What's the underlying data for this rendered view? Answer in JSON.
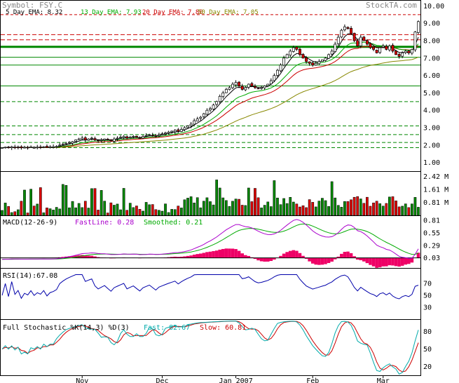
{
  "header": {
    "symbol": "Symbol: FSY.C",
    "watermark": "StockTA.com",
    "ema5": "5 Day EMA: 8.32",
    "ema13": "13 Day EMA: 7.93",
    "ema20": "20 Day EMA: 7.80",
    "ema50": "50 Day EMA: 7.05"
  },
  "colors": {
    "up_candle": "#ffffff",
    "down_candle": "#dd0000",
    "ema5": "#000000",
    "ema13": "#00aa00",
    "ema20": "#cc0000",
    "ema50": "#888800",
    "volume_up": "#008800",
    "volume_down": "#dd0000",
    "macd_fast": "#aa00cc",
    "macd_smoothed": "#00aa00",
    "macd_hist": "#ee0066",
    "rsi": "#0000aa",
    "stoch_fast": "#00aaaa",
    "stoch_slow": "#cc0000",
    "resistance": "#cc0000",
    "support": "#008800"
  },
  "chart_data": [
    {
      "type": "candlestick",
      "panel": "price",
      "ylim": [
        0.5,
        10.3
      ],
      "yticks": [
        "10.00",
        "9.00",
        "8.00",
        "7.00",
        "6.00",
        "5.00",
        "4.00",
        "3.00",
        "2.00",
        "1.00"
      ],
      "xtick_labels": [
        "Nov",
        "Dec",
        "Jan 2007",
        "Feb",
        "Mar"
      ],
      "series": [
        {
          "name": "5 Day EMA",
          "value": 8.32
        },
        {
          "name": "13 Day EMA",
          "value": 7.93
        },
        {
          "name": "20 Day EMA",
          "value": 7.8
        },
        {
          "name": "50 Day EMA",
          "value": 7.05
        }
      ],
      "closes": [
        1.85,
        1.88,
        1.85,
        1.9,
        1.86,
        1.88,
        1.84,
        1.87,
        1.86,
        1.89,
        1.86,
        1.88,
        1.87,
        1.9,
        1.86,
        1.89,
        1.9,
        1.92,
        2.0,
        2.05,
        2.1,
        2.15,
        2.2,
        2.3,
        2.35,
        2.4,
        2.3,
        2.35,
        2.4,
        2.3,
        2.25,
        2.3,
        2.35,
        2.3,
        2.25,
        2.35,
        2.4,
        2.45,
        2.5,
        2.4,
        2.45,
        2.5,
        2.45,
        2.4,
        2.5,
        2.55,
        2.6,
        2.55,
        2.5,
        2.6,
        2.65,
        2.7,
        2.75,
        2.8,
        2.85,
        2.8,
        2.9,
        3.0,
        3.1,
        3.2,
        3.4,
        3.5,
        3.6,
        3.8,
        4.0,
        4.1,
        4.3,
        4.5,
        4.8,
        5.0,
        5.2,
        5.3,
        5.5,
        5.6,
        5.4,
        5.2,
        5.3,
        5.5,
        5.4,
        5.3,
        5.25,
        5.3,
        5.4,
        5.5,
        5.7,
        6.0,
        6.3,
        6.6,
        7.0,
        7.2,
        7.4,
        7.6,
        7.5,
        7.2,
        7.0,
        6.8,
        6.7,
        6.6,
        6.7,
        6.8,
        6.9,
        7.0,
        7.2,
        7.4,
        7.8,
        8.2,
        8.6,
        8.8,
        8.7,
        8.4,
        8.0,
        7.7,
        8.2,
        8.0,
        7.8,
        7.6,
        7.5,
        7.3,
        7.6,
        7.7,
        7.5,
        7.7,
        7.4,
        7.2,
        7.1,
        7.3,
        7.4,
        7.3,
        7.5,
        8.5,
        9.1
      ],
      "resistance_levels": [
        9.5,
        8.35,
        8.05
      ],
      "support_levels": [
        7.65,
        7.05,
        6.6,
        5.4,
        4.5,
        3.1,
        2.6,
        2.15,
        1.85
      ]
    },
    {
      "type": "bar",
      "panel": "volume",
      "yticks": [
        "2.42 M",
        "1.61 M",
        "0.81 M"
      ],
      "ylim": [
        0,
        2.7
      ],
      "unit": "M"
    },
    {
      "type": "line",
      "panel": "macd",
      "title": "MACD(12-26-9)",
      "fastline_label": "FastLine: 0.28",
      "smoothed_label": "Smoothed: 0.21",
      "yticks": [
        "0.81",
        "0.55",
        "0.29",
        "0.03"
      ],
      "ylim": [
        -0.18,
        0.9
      ],
      "series": [
        {
          "name": "FastLine",
          "value": 0.28
        },
        {
          "name": "Smoothed",
          "value": 0.21
        }
      ]
    },
    {
      "type": "line",
      "panel": "rsi",
      "title": "RSI(14):67.08",
      "value": 67.08,
      "yticks": [
        "70",
        "50",
        "30"
      ],
      "ylim": [
        10,
        95
      ]
    },
    {
      "type": "line",
      "panel": "stochastic",
      "title": "Full Stochastic %K(14,3) %D(3)",
      "fast_label": "Fast: 82.67",
      "slow_label": "Slow: 60.81",
      "yticks": [
        "80",
        "50",
        "20"
      ],
      "ylim": [
        5,
        100
      ],
      "series": [
        {
          "name": "Fast",
          "value": 82.67
        },
        {
          "name": "Slow",
          "value": 60.81
        }
      ]
    }
  ]
}
